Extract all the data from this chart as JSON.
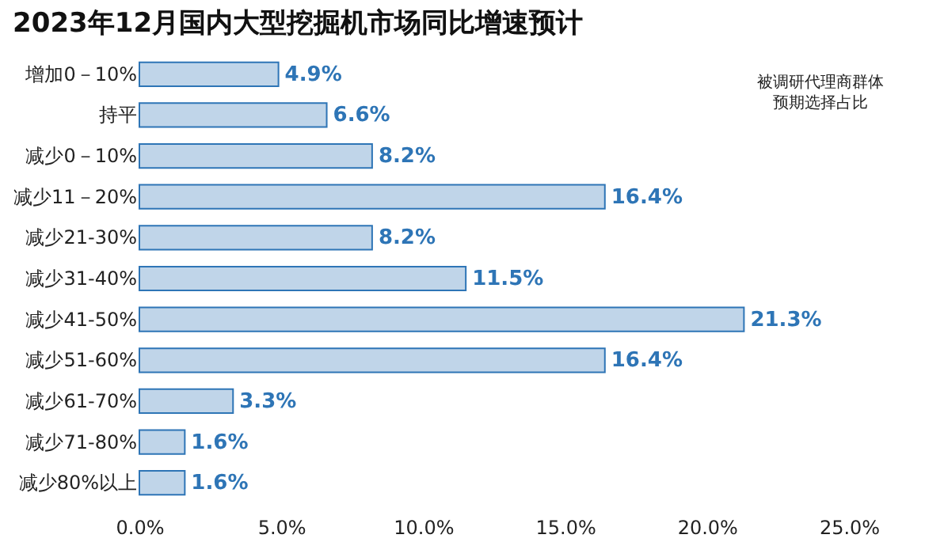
{
  "chart_data": {
    "type": "bar",
    "orientation": "horizontal",
    "title": "2023年12月国内大型挖掘机市场同比增速预计",
    "categories": [
      "增加0－10%",
      "持平",
      "减少0－10%",
      "减少11－20%",
      "减少21-30%",
      "减少31-40%",
      "减少41-50%",
      "减少51-60%",
      "减少61-70%",
      "减少71-80%",
      "减少80%以上"
    ],
    "values": [
      4.9,
      6.6,
      8.2,
      16.4,
      8.2,
      11.5,
      21.3,
      16.4,
      3.3,
      1.6,
      1.6
    ],
    "value_labels": [
      "4.9%",
      "6.6%",
      "8.2%",
      "16.4%",
      "8.2%",
      "11.5%",
      "21.3%",
      "16.4%",
      "3.3%",
      "1.6%",
      "1.6%"
    ],
    "color": "#2e75b6",
    "xlim": [
      0,
      25
    ],
    "xticks": [
      {
        "value": 0,
        "label": "0.0%"
      },
      {
        "value": 5,
        "label": "5.0%"
      },
      {
        "value": 10,
        "label": "10.0%"
      },
      {
        "value": 15,
        "label": "15.0%"
      },
      {
        "value": 20,
        "label": "20.0%"
      },
      {
        "value": 25,
        "label": "25.0%"
      }
    ],
    "grid": false,
    "annotations": [
      "被调研代理商群体",
      "预期选择占比"
    ]
  }
}
